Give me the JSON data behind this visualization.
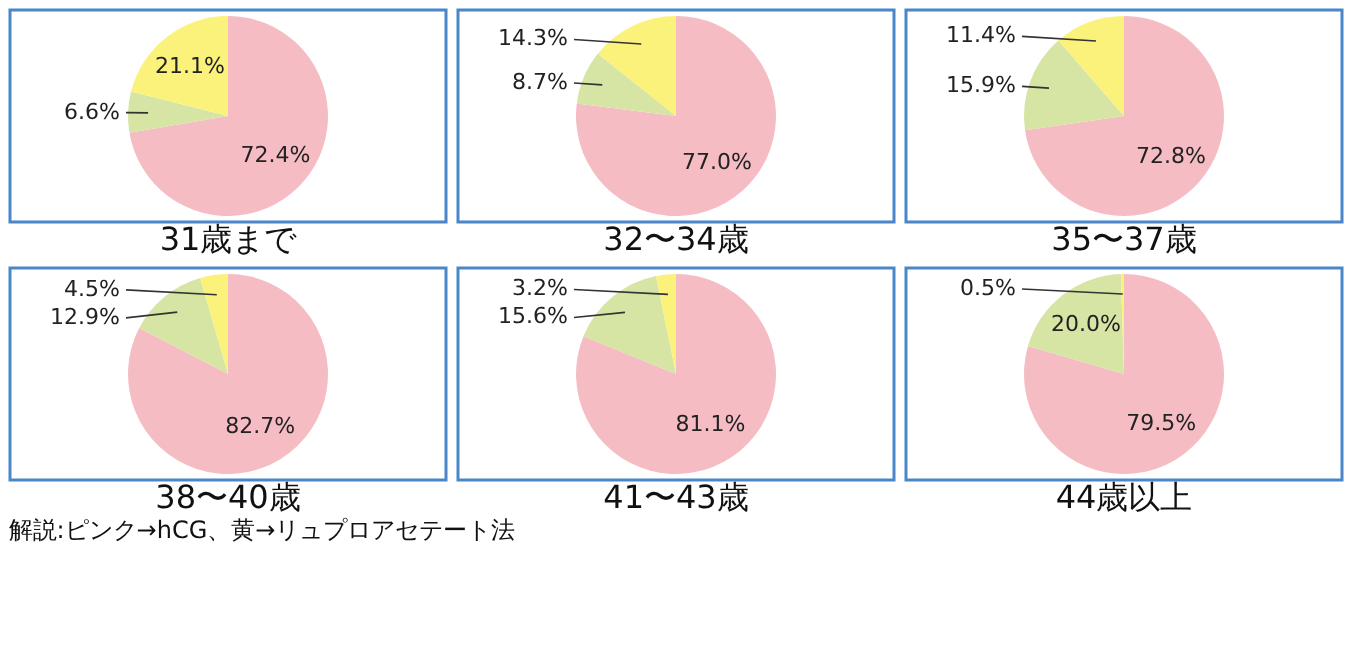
{
  "chart_data": [
    {
      "type": "pie",
      "title": "31歳まで",
      "categories": [
        null,
        null,
        null
      ],
      "values": [
        72.4,
        6.6,
        21.1
      ],
      "value_labels": [
        "72.4%",
        "6.6%",
        "21.1%"
      ],
      "colors": [
        "#f5bcc3",
        "#d6e4a4",
        "#fbf27c"
      ],
      "legend": false
    },
    {
      "type": "pie",
      "title": "32〜34歳",
      "categories": [
        null,
        null,
        null
      ],
      "values": [
        77.0,
        8.7,
        14.3
      ],
      "value_labels": [
        "77.0%",
        "8.7%",
        "14.3%"
      ],
      "colors": [
        "#f5bcc3",
        "#d6e4a4",
        "#fbf27c"
      ],
      "legend": false
    },
    {
      "type": "pie",
      "title": "35〜37歳",
      "categories": [
        null,
        null,
        null
      ],
      "values": [
        72.8,
        15.9,
        11.4
      ],
      "value_labels": [
        "72.8%",
        "15.9%",
        "11.4%"
      ],
      "colors": [
        "#f5bcc3",
        "#d6e4a4",
        "#fbf27c"
      ],
      "legend": false
    },
    {
      "type": "pie",
      "title": "38〜40歳",
      "categories": [
        null,
        null,
        null
      ],
      "values": [
        82.7,
        12.9,
        4.5
      ],
      "value_labels": [
        "82.7%",
        "12.9%",
        "4.5%"
      ],
      "colors": [
        "#f5bcc3",
        "#d6e4a4",
        "#fbf27c"
      ],
      "legend": false
    },
    {
      "type": "pie",
      "title": "41〜43歳",
      "categories": [
        null,
        null,
        null
      ],
      "values": [
        81.1,
        15.6,
        3.2
      ],
      "value_labels": [
        "81.1%",
        "15.6%",
        "3.2%"
      ],
      "colors": [
        "#f5bcc3",
        "#d6e4a4",
        "#fbf27c"
      ],
      "legend": false
    },
    {
      "type": "pie",
      "title": "44歳以上",
      "categories": [
        null,
        null,
        null
      ],
      "values": [
        79.5,
        20.0,
        0.5
      ],
      "value_labels": [
        "79.5%",
        "20.0%",
        "0.5%"
      ],
      "colors": [
        "#f5bcc3",
        "#d6e4a4",
        "#fbf27c"
      ],
      "legend": false,
      "annotations": [
        "解説:ピンク→hCG、黄→リュプロアセテート法"
      ]
    }
  ]
}
